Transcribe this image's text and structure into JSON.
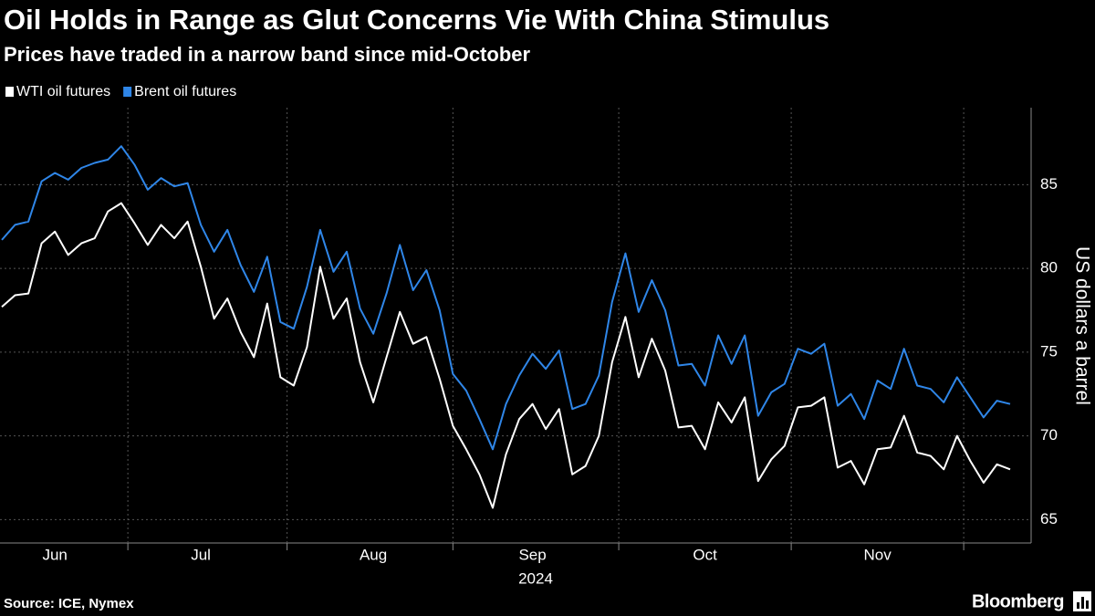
{
  "chart_data": {
    "type": "line",
    "title": "Oil Holds in Range as Glut Concerns Vie With China Stimulus",
    "subtitle": "Prices have traded in a narrow band since mid-October",
    "ylabel": "US dollars a barrel",
    "x_year": "2024",
    "source": "Source: ICE, Nymex",
    "brand": "Bloomberg",
    "categories": [
      null,
      null,
      null,
      null,
      "Jun",
      null,
      null,
      null,
      null,
      null,
      null,
      null,
      null,
      null,
      null,
      "Jul",
      null,
      null,
      null,
      null,
      null,
      null,
      null,
      null,
      null,
      null,
      null,
      null,
      "Aug",
      null,
      null,
      null,
      null,
      null,
      null,
      null,
      null,
      null,
      null,
      null,
      "Sep",
      null,
      null,
      null,
      null,
      null,
      null,
      null,
      null,
      null,
      null,
      null,
      null,
      "Oct",
      null,
      null,
      null,
      null,
      null,
      null,
      null,
      null,
      null,
      null,
      null,
      null,
      "Nov",
      null,
      null,
      null,
      null,
      null,
      null,
      null,
      null,
      null,
      null
    ],
    "series": [
      {
        "name": "WTI oil futures",
        "color": "#ffffff",
        "values": [
          77.7,
          78.4,
          78.5,
          81.5,
          82.2,
          80.8,
          81.5,
          81.8,
          83.4,
          83.9,
          82.7,
          81.4,
          82.6,
          81.8,
          82.8,
          80.1,
          77.0,
          78.2,
          76.2,
          74.7,
          77.9,
          73.5,
          73.0,
          75.3,
          80.1,
          77.0,
          78.2,
          74.4,
          72.0,
          74.7,
          77.4,
          75.5,
          75.9,
          73.4,
          70.6,
          69.2,
          67.7,
          65.7,
          68.9,
          71.0,
          71.9,
          70.4,
          71.6,
          67.7,
          68.2,
          70.0,
          74.4,
          77.1,
          73.5,
          75.8,
          73.9,
          70.5,
          70.6,
          69.2,
          72.0,
          70.8,
          72.3,
          67.3,
          68.6,
          69.4,
          71.7,
          71.8,
          72.3,
          68.1,
          68.5,
          67.1,
          69.2,
          69.3,
          71.2,
          69.0,
          68.8,
          68.0,
          70.0,
          68.5,
          67.2,
          68.3,
          68.0
        ]
      },
      {
        "name": "Brent oil futures",
        "color": "#2f86e8",
        "values": [
          81.7,
          82.6,
          82.8,
          85.2,
          85.7,
          85.3,
          86.0,
          86.3,
          86.5,
          87.3,
          86.2,
          84.7,
          85.4,
          84.9,
          85.1,
          82.6,
          81.0,
          82.3,
          80.2,
          78.6,
          80.7,
          76.8,
          76.4,
          78.9,
          82.3,
          79.8,
          81.0,
          77.6,
          76.1,
          78.5,
          81.4,
          78.7,
          79.9,
          77.5,
          73.7,
          72.7,
          71.0,
          69.2,
          71.9,
          73.6,
          74.9,
          74.0,
          75.1,
          71.6,
          71.9,
          73.6,
          78.0,
          80.9,
          77.4,
          79.3,
          77.5,
          74.2,
          74.3,
          73.0,
          76.0,
          74.3,
          76.0,
          71.2,
          72.6,
          73.1,
          75.2,
          74.9,
          75.5,
          71.8,
          72.5,
          71.0,
          73.3,
          72.8,
          75.2,
          73.0,
          72.8,
          72.0,
          73.5,
          72.3,
          71.1,
          72.1,
          71.9
        ]
      }
    ],
    "ylim": [
      63.6,
      89.6
    ],
    "yticks": [
      65,
      70,
      75,
      80,
      85
    ],
    "grid": true,
    "legend": "top-left"
  }
}
